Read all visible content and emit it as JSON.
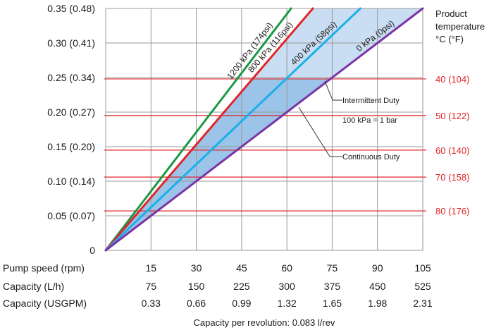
{
  "chart_data": {
    "type": "line",
    "ylim": [
      0,
      0.35
    ],
    "xlim": [
      0,
      105
    ],
    "y_ticks": [
      {
        "value": 0.35,
        "label": "0.35 (0.48)"
      },
      {
        "value": 0.3,
        "label": "0.30 (0.41)"
      },
      {
        "value": 0.25,
        "label": "0.25 (0.34)"
      },
      {
        "value": 0.2,
        "label": "0.20 (0.27)"
      },
      {
        "value": 0.15,
        "label": "0.15 (0.20)"
      },
      {
        "value": 0.1,
        "label": "0.10 (0.14)"
      },
      {
        "value": 0.05,
        "label": "0.05 (0.07)"
      },
      {
        "value": 0,
        "label": "0"
      }
    ],
    "x_rows": [
      {
        "label": "Pump speed (rpm)",
        "values": [
          "15",
          "30",
          "45",
          "60",
          "75",
          "90",
          "105"
        ]
      },
      {
        "label": "Capacity (L/h)",
        "values": [
          "75",
          "150",
          "225",
          "300",
          "375",
          "450",
          "525"
        ]
      },
      {
        "label": "Capacity (USGPM)",
        "values": [
          "0.33",
          "0.66",
          "0.99",
          "1.32",
          "1.65",
          "1.98",
          "2.31"
        ]
      }
    ],
    "x_tick_values": [
      15,
      30,
      45,
      60,
      75,
      90,
      105
    ],
    "series": [
      {
        "name": "1200 kPa (174psi)",
        "color": "#1a9a48",
        "x": [
          0,
          61.4
        ],
        "y": [
          0,
          0.35
        ]
      },
      {
        "name": "800 kPa (116psi)",
        "color": "#e0262a",
        "x": [
          0,
          68.6
        ],
        "y": [
          0,
          0.35
        ]
      },
      {
        "name": "400 kPa (58psi)",
        "color": "#1ab0ea",
        "x": [
          0,
          84.3
        ],
        "y": [
          0,
          0.35
        ]
      },
      {
        "name": "0 kPa (0psi)",
        "color": "#7a35a5",
        "x": [
          0,
          105
        ],
        "y": [
          0,
          0.35
        ]
      }
    ],
    "temperature_lines": [
      {
        "label": "40 (104)",
        "y": 0.248
      },
      {
        "label": "50 (122)",
        "y": 0.195
      },
      {
        "label": "60 (140)",
        "y": 0.145
      },
      {
        "label": "70 (158)",
        "y": 0.106
      },
      {
        "label": "80 (176)",
        "y": 0.057
      }
    ],
    "temperature_color": "#e0262a",
    "temperature_axis_title": [
      "Product",
      "temperature",
      "°C (°F)"
    ],
    "annotations": {
      "intermittent": "Intermittent Duty",
      "bar_note": "100 kPa = 1 bar",
      "continuous": "Continuous Duty"
    },
    "footnote": "Capacity per revolution: 0.083 l/rev",
    "grid": true,
    "light_fill": "#c9def2",
    "dark_fill": "#9cc3e8"
  }
}
